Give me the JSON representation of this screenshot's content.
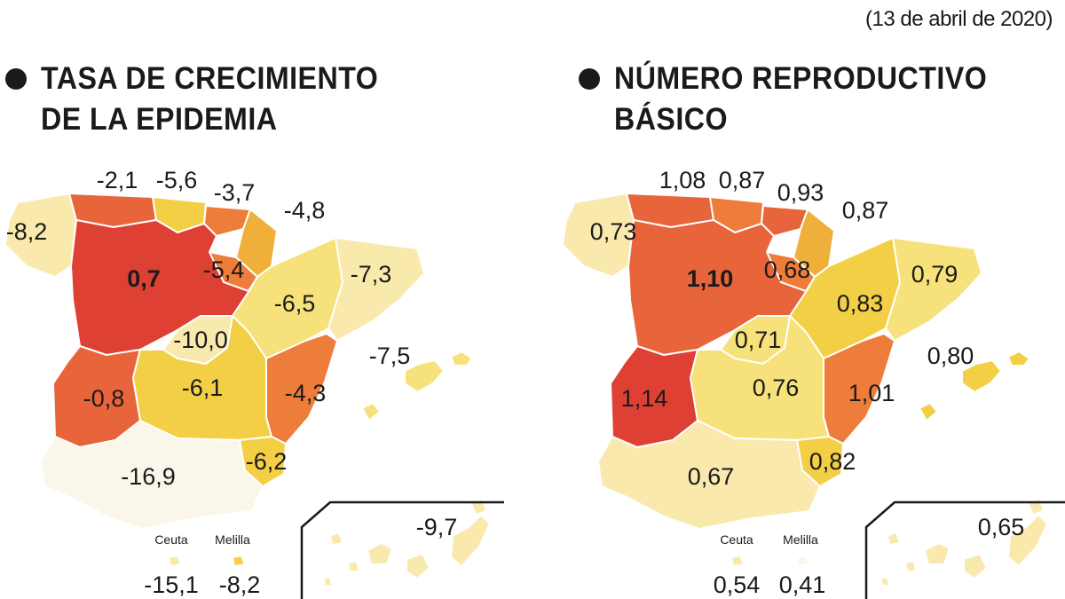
{
  "date": "(13 de abril de 2020)",
  "colors": {
    "white": "#fbf6ea",
    "pale": "#f9e9ad",
    "light_yellow": "#f6e17a",
    "yellow": "#f3cf45",
    "amber": "#efb03b",
    "orange": "#ee7c3a",
    "dark_orange": "#e8643a",
    "red": "#de4034"
  },
  "growth_map": {
    "title_line1": "TASA DE CRECIMIENTO",
    "title_line2": "DE LA EPIDEMIA",
    "labels": {
      "galicia": "-8,2",
      "asturias": "-2,1",
      "cantabria": "-5,6",
      "pais_vasco": "-3,7",
      "navarra": "-4,8",
      "castilla_leon": "0,7",
      "la_rioja": "-5,4",
      "aragon": "-6,5",
      "cataluna": "-7,3",
      "madrid": "-10,0",
      "extremadura": "-0,8",
      "castilla_la_mancha": "-6,1",
      "valencia": "-4,3",
      "murcia": "-6,2",
      "andalucia": "-16,9",
      "baleares": "-7,5",
      "canarias": "-9,7",
      "ceuta_name": "Ceuta",
      "melilla_name": "Melilla",
      "ceuta": "-15,1",
      "melilla": "-8,2"
    }
  },
  "r0_map": {
    "title_line1": "NÚMERO REPRODUCTIVO",
    "title_line2": "BÁSICO",
    "labels": {
      "galicia": "0,73",
      "asturias": "1,08",
      "cantabria": "0,87",
      "pais_vasco": "0,93",
      "navarra": "0,87",
      "castilla_leon": "1,10",
      "la_rioja": "0,68",
      "aragon": "0,83",
      "cataluna": "0,79",
      "madrid": "0,71",
      "extremadura": "1,14",
      "castilla_la_mancha": "0,76",
      "valencia": "1,01",
      "murcia": "0,82",
      "andalucia": "0,67",
      "baleares": "0,80",
      "canarias": "0,65",
      "ceuta_name": "Ceuta",
      "melilla_name": "Melilla",
      "ceuta": "0,54",
      "melilla": "0,41"
    }
  }
}
